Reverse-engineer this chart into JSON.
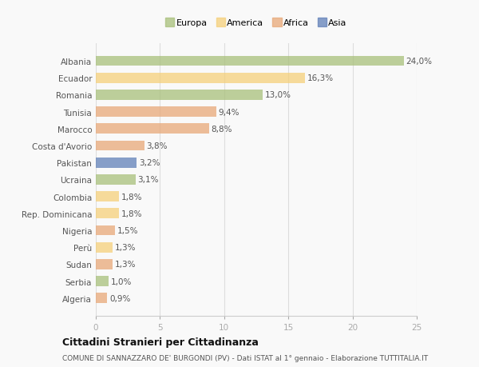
{
  "categories": [
    "Albania",
    "Ecuador",
    "Romania",
    "Tunisia",
    "Marocco",
    "Costa d'Avorio",
    "Pakistan",
    "Ucraina",
    "Colombia",
    "Rep. Dominicana",
    "Nigeria",
    "Perù",
    "Sudan",
    "Serbia",
    "Algeria"
  ],
  "values": [
    24.0,
    16.3,
    13.0,
    9.4,
    8.8,
    3.8,
    3.2,
    3.1,
    1.8,
    1.8,
    1.5,
    1.3,
    1.3,
    1.0,
    0.9
  ],
  "labels": [
    "24,0%",
    "16,3%",
    "13,0%",
    "9,4%",
    "8,8%",
    "3,8%",
    "3,2%",
    "3,1%",
    "1,8%",
    "1,8%",
    "1,5%",
    "1,3%",
    "1,3%",
    "1,0%",
    "0,9%"
  ],
  "colors": [
    "#a8c07a",
    "#f5d07a",
    "#a8c07a",
    "#e8a878",
    "#e8a878",
    "#e8a878",
    "#6080b8",
    "#a8c07a",
    "#f5d07a",
    "#f5d07a",
    "#e8a878",
    "#f5d07a",
    "#e8a878",
    "#a8c07a",
    "#e8a878"
  ],
  "legend_labels": [
    "Europa",
    "America",
    "Africa",
    "Asia"
  ],
  "legend_colors": [
    "#a8c07a",
    "#f5d07a",
    "#e8a878",
    "#6080b8"
  ],
  "title": "Cittadini Stranieri per Cittadinanza",
  "subtitle": "COMUNE DI SANNAZZARO DE' BURGONDI (PV) - Dati ISTAT al 1° gennaio - Elaborazione TUTTITALIA.IT",
  "xlim": [
    0,
    25
  ],
  "xticks": [
    0,
    5,
    10,
    15,
    20,
    25
  ],
  "background_color": "#f9f9f9",
  "bar_alpha": 0.75,
  "title_fontsize": 9,
  "subtitle_fontsize": 6.5,
  "label_fontsize": 7.5,
  "ytick_fontsize": 7.5,
  "xtick_fontsize": 7.5,
  "legend_fontsize": 8
}
